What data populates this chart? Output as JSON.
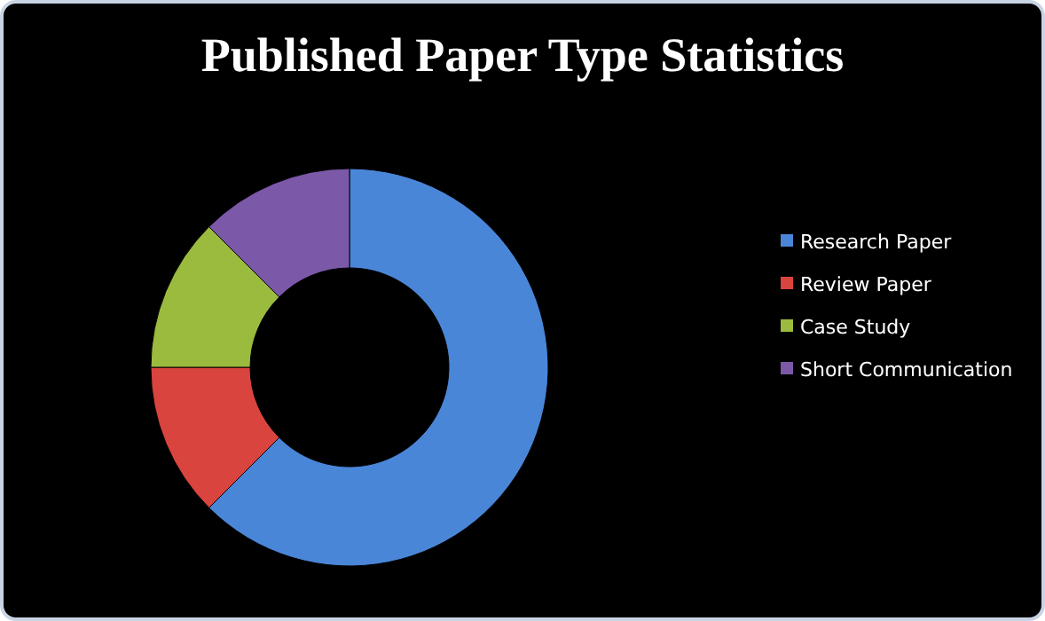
{
  "chart_data": {
    "type": "donut",
    "title": "Published Paper Type Statistics",
    "categories": [
      "Research Paper",
      "Review Paper",
      "Case Study",
      "Short Communication"
    ],
    "values": [
      62.5,
      12.5,
      12.5,
      12.5
    ],
    "colors": [
      "#4a86d8",
      "#d9443f",
      "#9bbb3f",
      "#7b58a8"
    ],
    "legend": "right"
  }
}
